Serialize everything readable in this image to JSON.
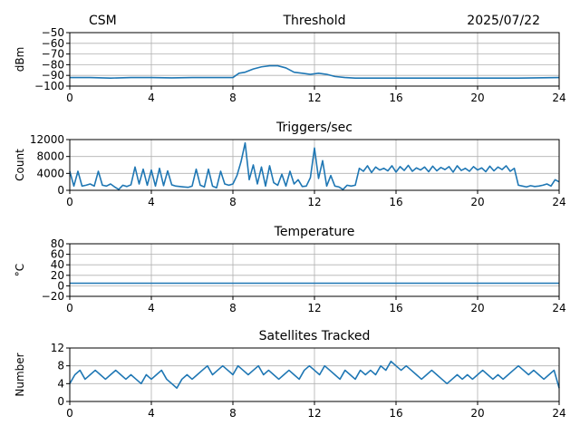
{
  "figure": {
    "left_header": "CSM",
    "right_header": "2025/07/22"
  },
  "colors": {
    "series": "#1f77b4",
    "grid": "#b0b0b0",
    "axis": "#000000"
  },
  "chart_data": [
    {
      "type": "line",
      "title": "Threshold",
      "xlabel": "",
      "ylabel": "dBm",
      "xlim": [
        0,
        24
      ],
      "ylim": [
        -100,
        -50
      ],
      "xticks": [
        0,
        4,
        8,
        12,
        16,
        20,
        24
      ],
      "yticks": [
        -100,
        -90,
        -80,
        -70,
        -60,
        -50
      ],
      "grid": true,
      "series": [
        {
          "x": [
            0,
            1,
            2,
            3,
            4,
            5,
            6,
            7,
            7.5,
            8,
            8.3,
            8.6,
            9,
            9.4,
            9.8,
            10.2,
            10.6,
            11,
            11.4,
            11.8,
            12.2,
            12.6,
            13,
            13.5,
            14,
            16,
            18,
            20,
            22,
            24
          ],
          "y": [
            -92,
            -92,
            -92.5,
            -92,
            -92,
            -92.3,
            -92,
            -92,
            -92,
            -92,
            -88,
            -87,
            -84,
            -82,
            -81,
            -81,
            -83,
            -87,
            -88,
            -89,
            -88,
            -89,
            -91,
            -92,
            -92.5,
            -92.5,
            -92.5,
            -92.5,
            -92.5,
            -92
          ]
        }
      ]
    },
    {
      "type": "line",
      "title": "Triggers/sec",
      "xlabel": "",
      "ylabel": "Count",
      "xlim": [
        0,
        24
      ],
      "ylim": [
        0,
        12000
      ],
      "xticks": [
        0,
        4,
        8,
        12,
        16,
        20,
        24
      ],
      "yticks": [
        0,
        4000,
        8000,
        12000
      ],
      "grid": true,
      "series": [
        {
          "x": [
            0,
            0.2,
            0.4,
            0.6,
            0.8,
            1.0,
            1.2,
            1.4,
            1.6,
            1.8,
            2.0,
            2.2,
            2.4,
            2.6,
            2.8,
            3.0,
            3.2,
            3.4,
            3.6,
            3.8,
            4.0,
            4.2,
            4.4,
            4.6,
            4.8,
            5.0,
            5.2,
            5.4,
            5.6,
            5.8,
            6.0,
            6.2,
            6.4,
            6.6,
            6.8,
            7.0,
            7.2,
            7.4,
            7.6,
            7.8,
            8.0,
            8.2,
            8.4,
            8.6,
            8.8,
            9.0,
            9.2,
            9.4,
            9.6,
            9.8,
            10.0,
            10.2,
            10.4,
            10.6,
            10.8,
            11.0,
            11.2,
            11.4,
            11.6,
            11.8,
            12.0,
            12.2,
            12.4,
            12.6,
            12.8,
            13.0,
            13.2,
            13.4,
            13.6,
            13.8,
            14.0,
            14.2,
            14.4,
            14.6,
            14.8,
            15.0,
            15.2,
            15.4,
            15.6,
            15.8,
            16.0,
            16.2,
            16.4,
            16.6,
            16.8,
            17.0,
            17.2,
            17.4,
            17.6,
            17.8,
            18.0,
            18.2,
            18.4,
            18.6,
            18.8,
            19.0,
            19.2,
            19.4,
            19.6,
            19.8,
            20.0,
            20.2,
            20.4,
            20.6,
            20.8,
            21.0,
            21.2,
            21.4,
            21.6,
            21.8,
            22.0,
            22.2,
            22.4,
            22.6,
            22.8,
            23.0,
            23.2,
            23.4,
            23.6,
            23.8,
            24.0
          ],
          "y": [
            4500,
            1000,
            4500,
            1000,
            1200,
            1500,
            1000,
            4500,
            1200,
            1000,
            1500,
            800,
            200,
            1200,
            900,
            1300,
            5500,
            1500,
            5000,
            1200,
            4800,
            1000,
            5200,
            1100,
            4600,
            1300,
            1000,
            900,
            800,
            700,
            1000,
            5000,
            1200,
            800,
            5000,
            1000,
            600,
            4500,
            1500,
            1200,
            1500,
            3500,
            6800,
            11200,
            2500,
            6000,
            1500,
            5500,
            1000,
            5800,
            1800,
            1200,
            3800,
            1000,
            4500,
            1500,
            2500,
            900,
            1000,
            3000,
            10000,
            2800,
            7000,
            1000,
            3500,
            1000,
            800,
            200,
            1200,
            1000,
            1200,
            5200,
            4500,
            5800,
            4200,
            5500,
            4800,
            5200,
            4600,
            5800,
            4300,
            5600,
            4700,
            5900,
            4500,
            5300,
            4800,
            5500,
            4400,
            5700,
            4600,
            5400,
            4900,
            5600,
            4300,
            5800,
            4700,
            5200,
            4500,
            5600,
            4800,
            5300,
            4400,
            5700,
            4600,
            5500,
            4900,
            5800,
            4500,
            5200,
            1200,
            1000,
            800,
            1100,
            900,
            1000,
            1200,
            1500,
            1000,
            2500,
            2000
          ]
        }
      ]
    },
    {
      "type": "line",
      "title": "Temperature",
      "xlabel": "",
      "ylabel": "°C",
      "xlim": [
        0,
        24
      ],
      "ylim": [
        -20,
        80
      ],
      "xticks": [
        0,
        4,
        8,
        12,
        16,
        20,
        24
      ],
      "yticks": [
        -20,
        0,
        20,
        40,
        60,
        80
      ],
      "grid": true,
      "series": [
        {
          "x": [
            0,
            4,
            8,
            12,
            16,
            20,
            24
          ],
          "y": [
            5,
            5,
            5,
            5,
            5,
            5,
            5
          ]
        }
      ]
    },
    {
      "type": "line",
      "title": "Satellites Tracked",
      "xlabel": "",
      "ylabel": "Number",
      "xlim": [
        0,
        24
      ],
      "ylim": [
        0,
        12
      ],
      "xticks": [
        0,
        4,
        8,
        12,
        16,
        20,
        24
      ],
      "yticks": [
        0,
        4,
        8,
        12
      ],
      "grid": true,
      "series": [
        {
          "x": [
            0,
            0.25,
            0.5,
            0.75,
            1.0,
            1.25,
            1.5,
            1.75,
            2.0,
            2.25,
            2.5,
            2.75,
            3.0,
            3.25,
            3.5,
            3.75,
            4.0,
            4.25,
            4.5,
            4.75,
            5.0,
            5.25,
            5.5,
            5.75,
            6.0,
            6.25,
            6.5,
            6.75,
            7.0,
            7.25,
            7.5,
            7.75,
            8.0,
            8.25,
            8.5,
            8.75,
            9.0,
            9.25,
            9.5,
            9.75,
            10.0,
            10.25,
            10.5,
            10.75,
            11.0,
            11.25,
            11.5,
            11.75,
            12.0,
            12.25,
            12.5,
            12.75,
            13.0,
            13.25,
            13.5,
            13.75,
            14.0,
            14.25,
            14.5,
            14.75,
            15.0,
            15.25,
            15.5,
            15.75,
            16.0,
            16.25,
            16.5,
            16.75,
            17.0,
            17.25,
            17.5,
            17.75,
            18.0,
            18.25,
            18.5,
            18.75,
            19.0,
            19.25,
            19.5,
            19.75,
            20.0,
            20.25,
            20.5,
            20.75,
            21.0,
            21.25,
            21.5,
            21.75,
            22.0,
            22.25,
            22.5,
            22.75,
            23.0,
            23.25,
            23.5,
            23.75,
            24.0
          ],
          "y": [
            4,
            6,
            7,
            5,
            6,
            7,
            6,
            5,
            6,
            7,
            6,
            5,
            6,
            5,
            4,
            6,
            5,
            6,
            7,
            5,
            4,
            3,
            5,
            6,
            5,
            6,
            7,
            8,
            6,
            7,
            8,
            7,
            6,
            8,
            7,
            6,
            7,
            8,
            6,
            7,
            6,
            5,
            6,
            7,
            6,
            5,
            7,
            8,
            7,
            6,
            8,
            7,
            6,
            5,
            7,
            6,
            5,
            7,
            6,
            7,
            6,
            8,
            7,
            9,
            8,
            7,
            8,
            7,
            6,
            5,
            6,
            7,
            6,
            5,
            4,
            5,
            6,
            5,
            6,
            5,
            6,
            7,
            6,
            5,
            6,
            5,
            6,
            7,
            8,
            7,
            6,
            7,
            6,
            5,
            6,
            7,
            3
          ]
        }
      ]
    }
  ]
}
